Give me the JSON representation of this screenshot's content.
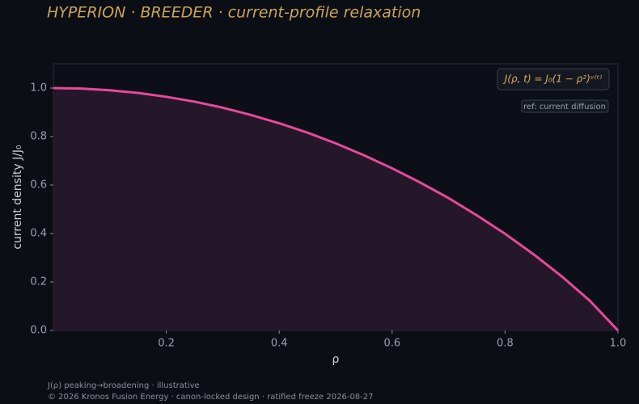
{
  "chart_data": {
    "type": "area",
    "title": "HYPERION · BREEDER  ·  current-profile relaxation",
    "x_label": "ρ",
    "y_label": "current density J/J₀",
    "x": [
      0,
      0.05,
      0.1,
      0.15,
      0.2,
      0.25,
      0.3,
      0.35,
      0.4,
      0.45,
      0.5,
      0.55,
      0.6,
      0.65,
      0.7,
      0.75,
      0.8,
      0.85,
      0.9,
      0.95,
      1.0
    ],
    "series": [
      {
        "name": "J(ρ, t) = J₀(1 − ρ²)ᵛ⁽ᵗ⁾",
        "color": "#e8489a",
        "fill": "#24172a",
        "values": [
          1,
          0.998,
          0.991,
          0.98,
          0.964,
          0.944,
          0.919,
          0.889,
          0.855,
          0.816,
          0.772,
          0.723,
          0.669,
          0.61,
          0.546,
          0.475,
          0.399,
          0.315,
          0.224,
          0.123,
          0
        ]
      }
    ],
    "xlim": [
      0,
      1
    ],
    "ylim": [
      0,
      1.1
    ],
    "xticks": [
      0.2,
      0.4,
      0.6,
      0.8,
      {
        "value": 1,
        "label": "1.0"
      }
    ],
    "yticks": [
      {
        "value": 0,
        "label": "0.0"
      },
      0.2,
      0.4,
      0.6,
      0.8,
      {
        "value": 1,
        "label": "1.0"
      }
    ],
    "annotation": "ref: current diffusion",
    "footer": [
      "J(ρ) peaking→broadening · illustrative",
      "© 2026 Kronos Fusion Energy · canon-locked design · ratified freeze 2026-08-27"
    ]
  }
}
